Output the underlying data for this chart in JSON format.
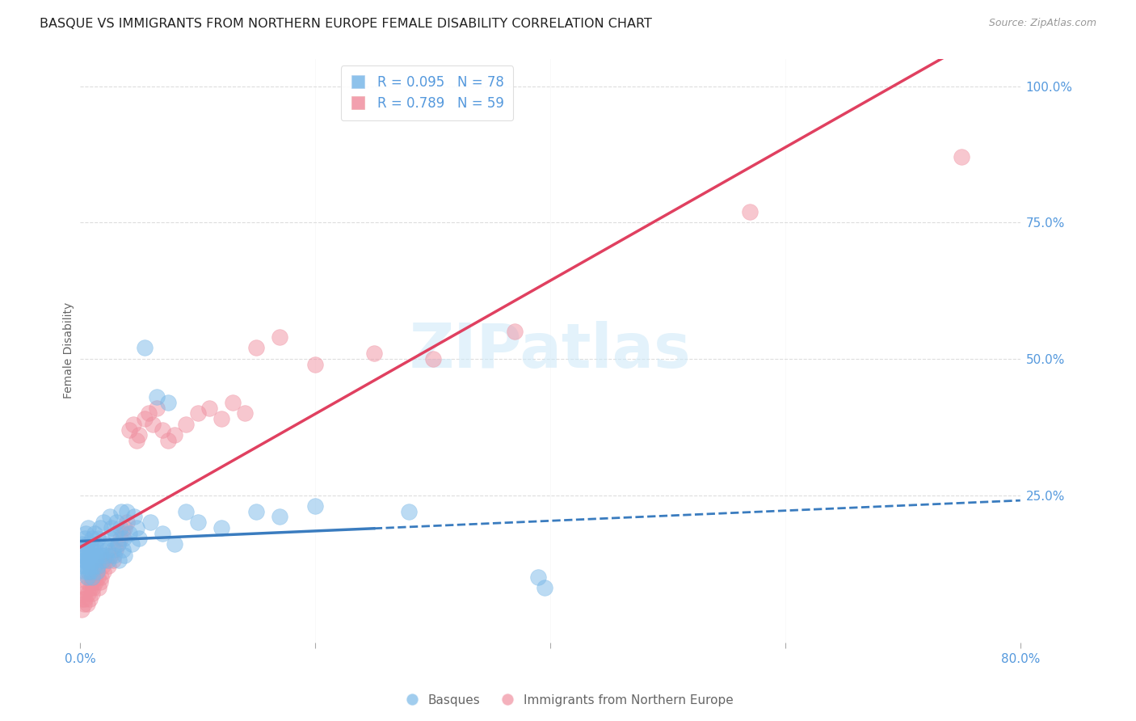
{
  "title": "BASQUE VS IMMIGRANTS FROM NORTHERN EUROPE FEMALE DISABILITY CORRELATION CHART",
  "source": "Source: ZipAtlas.com",
  "ylabel": "Female Disability",
  "watermark": "ZIPatlas",
  "xlim": [
    0.0,
    0.8
  ],
  "ylim": [
    -0.02,
    1.05
  ],
  "ytick_labels": [
    "100.0%",
    "75.0%",
    "50.0%",
    "25.0%"
  ],
  "ytick_vals": [
    1.0,
    0.75,
    0.5,
    0.25
  ],
  "basque_R": 0.095,
  "basque_N": 78,
  "immig_R": 0.789,
  "immig_N": 59,
  "basque_color": "#7ab8e8",
  "immig_color": "#f090a0",
  "basque_line_color": "#3a7cbf",
  "immig_line_color": "#e04060",
  "legend_label_basque": "Basques",
  "legend_label_immig": "Immigrants from Northern Europe",
  "title_color": "#222222",
  "axis_label_color": "#666666",
  "tick_color": "#5599dd",
  "grid_color": "#dddddd",
  "background_color": "#ffffff",
  "title_fontsize": 11.5,
  "source_fontsize": 9,
  "ylabel_fontsize": 10,
  "legend_fontsize": 11,
  "seed": 7,
  "basque_x": [
    0.001,
    0.002,
    0.002,
    0.003,
    0.003,
    0.004,
    0.004,
    0.004,
    0.005,
    0.005,
    0.005,
    0.006,
    0.006,
    0.006,
    0.007,
    0.007,
    0.007,
    0.008,
    0.008,
    0.009,
    0.009,
    0.01,
    0.01,
    0.01,
    0.011,
    0.011,
    0.012,
    0.012,
    0.013,
    0.013,
    0.014,
    0.014,
    0.015,
    0.015,
    0.016,
    0.017,
    0.018,
    0.019,
    0.02,
    0.021,
    0.022,
    0.023,
    0.024,
    0.025,
    0.026,
    0.027,
    0.028,
    0.029,
    0.03,
    0.031,
    0.032,
    0.033,
    0.034,
    0.035,
    0.036,
    0.037,
    0.038,
    0.04,
    0.042,
    0.044,
    0.046,
    0.048,
    0.05,
    0.055,
    0.06,
    0.065,
    0.07,
    0.075,
    0.08,
    0.09,
    0.1,
    0.12,
    0.15,
    0.17,
    0.2,
    0.28,
    0.39,
    0.395
  ],
  "basque_y": [
    0.14,
    0.12,
    0.16,
    0.13,
    0.15,
    0.11,
    0.17,
    0.13,
    0.14,
    0.12,
    0.18,
    0.15,
    0.1,
    0.16,
    0.13,
    0.11,
    0.19,
    0.14,
    0.12,
    0.15,
    0.11,
    0.13,
    0.17,
    0.1,
    0.15,
    0.14,
    0.12,
    0.18,
    0.16,
    0.13,
    0.11,
    0.14,
    0.17,
    0.12,
    0.15,
    0.19,
    0.14,
    0.13,
    0.2,
    0.16,
    0.14,
    0.15,
    0.13,
    0.21,
    0.17,
    0.19,
    0.15,
    0.14,
    0.18,
    0.2,
    0.16,
    0.13,
    0.19,
    0.22,
    0.15,
    0.17,
    0.14,
    0.22,
    0.18,
    0.16,
    0.21,
    0.19,
    0.17,
    0.52,
    0.2,
    0.43,
    0.18,
    0.42,
    0.16,
    0.22,
    0.2,
    0.19,
    0.22,
    0.21,
    0.23,
    0.22,
    0.1,
    0.08
  ],
  "immig_x": [
    0.001,
    0.002,
    0.003,
    0.003,
    0.004,
    0.005,
    0.006,
    0.006,
    0.007,
    0.007,
    0.008,
    0.009,
    0.01,
    0.01,
    0.011,
    0.012,
    0.013,
    0.014,
    0.015,
    0.016,
    0.017,
    0.018,
    0.019,
    0.02,
    0.022,
    0.024,
    0.026,
    0.028,
    0.03,
    0.032,
    0.034,
    0.036,
    0.038,
    0.04,
    0.042,
    0.045,
    0.048,
    0.05,
    0.055,
    0.058,
    0.062,
    0.065,
    0.07,
    0.075,
    0.08,
    0.09,
    0.1,
    0.11,
    0.12,
    0.13,
    0.14,
    0.15,
    0.17,
    0.2,
    0.25,
    0.3,
    0.37,
    0.57,
    0.75
  ],
  "immig_y": [
    0.04,
    0.06,
    0.05,
    0.07,
    0.06,
    0.08,
    0.05,
    0.09,
    0.07,
    0.1,
    0.06,
    0.08,
    0.07,
    0.09,
    0.08,
    0.1,
    0.09,
    0.11,
    0.1,
    0.08,
    0.09,
    0.1,
    0.12,
    0.11,
    0.13,
    0.12,
    0.14,
    0.13,
    0.15,
    0.16,
    0.17,
    0.18,
    0.19,
    0.2,
    0.37,
    0.38,
    0.35,
    0.36,
    0.39,
    0.4,
    0.38,
    0.41,
    0.37,
    0.35,
    0.36,
    0.38,
    0.4,
    0.41,
    0.39,
    0.42,
    0.4,
    0.52,
    0.54,
    0.49,
    0.51,
    0.5,
    0.55,
    0.77,
    0.87
  ]
}
